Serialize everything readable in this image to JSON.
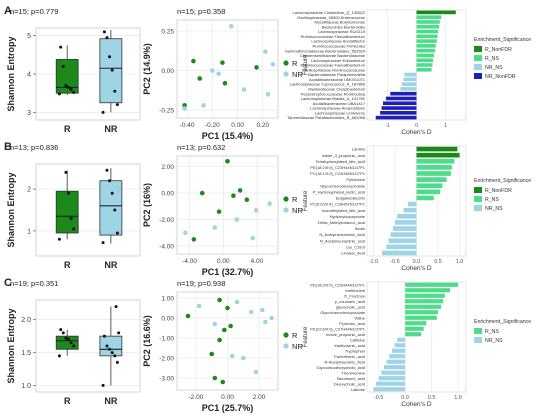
{
  "chart_data": [
    {
      "panel": "A",
      "kind": "box",
      "type": "box",
      "title": "n=15; p=0.779",
      "ylabel": "Shannon Entropy",
      "categories": [
        "R",
        "NR"
      ],
      "colors": [
        "#1b8a1b",
        "#9fd3e6"
      ],
      "ylim": [
        2.8,
        5.2
      ],
      "yticks": [
        3,
        4,
        5
      ],
      "boxes": [
        {
          "min": 3.45,
          "q1": 3.5,
          "median": 3.65,
          "q3": 4.38,
          "max": 4.75
        },
        {
          "min": 3.0,
          "q1": 3.25,
          "median": 4.15,
          "q3": 4.92,
          "max": 5.15
        }
      ],
      "points": [
        [
          3.48,
          3.52,
          3.6,
          3.65,
          3.7,
          4.2,
          4.7
        ],
        [
          3.0,
          3.2,
          3.55,
          4.1,
          4.45,
          4.95,
          5.1
        ]
      ]
    },
    {
      "panel": "A",
      "kind": "pca",
      "type": "scatter",
      "title": "n=15; p=0.358",
      "xlabel": "PC1 (15.4%)",
      "ylabel": "PC2 (14.9%)",
      "xlim": [
        -0.48,
        0.32
      ],
      "ylim": [
        -0.3,
        0.32
      ],
      "xticks": [
        -0.4,
        -0.2,
        0.0,
        0.2
      ],
      "xtick_labels": [
        "-0.40",
        "-0.20",
        "0.00",
        "0.20"
      ],
      "yticks": [
        -0.25,
        0.0,
        0.25
      ],
      "ytick_labels": [
        "-0.25",
        "0.00",
        "0.25"
      ],
      "series": [
        {
          "name": "R",
          "color": "#1b8a1b",
          "x": [
            -0.42,
            -0.35,
            -0.12,
            -0.3,
            -0.1,
            0.15
          ],
          "y": [
            -0.22,
            0.06,
            0.05,
            -0.05,
            -0.08,
            0.02
          ]
        },
        {
          "name": "NR",
          "color": "#9fd3e6",
          "x": [
            -0.42,
            -0.27,
            -0.2,
            0.05,
            0.22,
            0.24,
            -0.05,
            -0.15,
            0.28
          ],
          "y": [
            -0.24,
            -0.22,
            0.0,
            -0.12,
            0.12,
            -0.15,
            0.28,
            -0.02,
            0.04
          ]
        }
      ]
    },
    {
      "panel": "A",
      "kind": "enrichment",
      "type": "bar",
      "xlabel": "Cohen's D",
      "ylabel": "Feature",
      "xlim": [
        -1.7,
        1.7
      ],
      "xticks": [
        -1,
        0,
        1
      ],
      "legend_title": "Enrichment_Significance",
      "legend": [
        {
          "name": "R_NonFDR",
          "color": "#1b8a1b"
        },
        {
          "name": "R_NS",
          "color": "#4ddc8a"
        },
        {
          "name": "NR_NS",
          "color": "#9fd3e6"
        },
        {
          "name": "NR_NonFDR",
          "color": "#1f1fb8"
        }
      ],
      "categories": [
        "Lachnospiraceae Clostridium_Q_135822",
        "Oscillospiraceae_38309 Enterococcus",
        "Mycofillaceae Butyricimonas",
        "Bacteroides Bacteroides",
        "Lachnospiraceae RUG115",
        "Ruminococcaceae Faecalibacterium",
        "Lachnospiraceae Acetatifactor",
        "Ruminococcaceae Firmicutes",
        "Gemmatimonadaceae Bacteroidales_562524",
        "Christensenellaceae Bacteroidaceae",
        "Lachnospiraceae Eubacterium",
        "Ruminococcaceae Faecalibacterium",
        "Oscillospiraceae Ruminococcaceae",
        "Bacteroidaceae Parapreevotella",
        "Acutalibacteraceae UMGS1071",
        "Lachnospiraceae Coprococcus_A_187866",
        "Weeksellaceae Cloacibacterium",
        "Peptostreptococcaceae Romboutsia",
        "Lachnospiraceae Blautia_A_141780",
        "Acutalibacteraceae UBA1417",
        "Lachnospiraceae Anaerostipes",
        "Lachnospiraceae Limivivens",
        "Tannerellaceae Parabacteroides_B_862066"
      ],
      "values": [
        1.35,
        0.85,
        0.8,
        0.78,
        0.75,
        0.72,
        0.7,
        0.66,
        0.64,
        0.6,
        0.57,
        0.55,
        0.52,
        -0.42,
        -0.45,
        -0.5,
        -0.55,
        -0.9,
        -1.05,
        -1.15,
        -1.2,
        -1.25,
        -1.4
      ],
      "groups": [
        "R_NonFDR",
        "R_NS",
        "R_NS",
        "R_NS",
        "R_NS",
        "R_NS",
        "R_NS",
        "R_NS",
        "R_NS",
        "R_NS",
        "R_NS",
        "R_NS",
        "R_NS",
        "NR_NS",
        "NR_NS",
        "NR_NS",
        "NR_NS",
        "NR_NonFDR",
        "NR_NonFDR",
        "NR_NonFDR",
        "NR_NonFDR",
        "NR_NonFDR",
        "NR_NonFDR"
      ]
    },
    {
      "panel": "B",
      "kind": "box",
      "type": "box",
      "title": "n=13; p=0.836",
      "ylabel": "Shannon Entropy",
      "categories": [
        "R",
        "NR"
      ],
      "colors": [
        "#1b8a1b",
        "#9fd3e6"
      ],
      "ylim": [
        0.4,
        2.6
      ],
      "yticks": [
        1,
        2
      ],
      "boxes": [
        {
          "min": 0.8,
          "q1": 0.95,
          "median": 1.35,
          "q3": 1.95,
          "max": 2.45
        },
        {
          "min": 0.7,
          "q1": 0.9,
          "median": 1.6,
          "q3": 2.2,
          "max": 2.5
        }
      ],
      "points": [
        [
          0.8,
          1.05,
          1.3,
          1.9,
          2.4
        ],
        [
          0.72,
          0.95,
          1.5,
          1.9,
          2.2,
          2.45
        ]
      ]
    },
    {
      "panel": "B",
      "kind": "pca",
      "type": "scatter",
      "title": "n=13; p=0.632",
      "xlabel": "PC1 (32.7%)",
      "ylabel": "PC2 (16%)",
      "xlim": [
        -5.5,
        6.5
      ],
      "ylim": [
        -4.6,
        2.8
      ],
      "xticks": [
        -4,
        0,
        4
      ],
      "xtick_labels": [
        "-4.00",
        "0.00",
        "4.00"
      ],
      "yticks": [
        -4,
        -2,
        0,
        2
      ],
      "ytick_labels": [
        "-4.00",
        "-2.00",
        "0.00",
        "2.00"
      ],
      "series": [
        {
          "name": "R",
          "color": "#1b8a1b",
          "x": [
            -3.5,
            -2.5,
            0.5,
            -0.5,
            1.2,
            2.0,
            2.8
          ],
          "y": [
            -3.5,
            0.0,
            2.4,
            -1.4,
            -0.2,
            0.2,
            -0.5
          ]
        },
        {
          "name": "NR",
          "color": "#9fd3e6",
          "x": [
            -4.5,
            1.6,
            3.5,
            5.5,
            3.9,
            -1.0
          ],
          "y": [
            -3.0,
            -2.0,
            -3.4,
            -0.8,
            -1.3,
            -2.6
          ]
        }
      ]
    },
    {
      "panel": "B",
      "kind": "enrichment",
      "type": "bar",
      "xlabel": "Cohen's D",
      "ylabel": "Feature",
      "xlim": [
        -1.15,
        1.15
      ],
      "xticks": [
        -1.0,
        -0.5,
        0.0,
        0.5,
        1.0
      ],
      "xtick_labels": [
        "-1.0",
        "-0.5",
        "0.0",
        "0.5",
        "1.0"
      ],
      "legend_title": "Enrichment_Significance",
      "legend": [
        {
          "name": "R_NonFDR",
          "color": "#1b8a1b"
        },
        {
          "name": "R_NS",
          "color": "#4ddc8a"
        },
        {
          "name": "NR_NS",
          "color": "#9fd3e6"
        }
      ],
      "categories": [
        "Lambin",
        "indole_3_propionic_acid",
        "Tetrahydroxylated_bile_acid",
        "PE(18:2/0:0)_C23H44N1O7P1",
        "PC(16:1/0:0)_C24H48N1O7P1",
        "Pyridoxine",
        "Glycochenodeoxycholate",
        "P_Hydroxyphenyl_lactic_acid",
        "Epigallocatechin",
        "PC(0:0/20:4)_C28H51N1O7P1",
        "Isomethylated_bile_acid",
        "Hydroxyisocaproate",
        "Delta_Methyltobacco_acid",
        "Biotin",
        "N_Acetylneuraminic_Acid",
        "N_Acetylneuraminic_acid",
        "Lys_C18:0",
        "Linoleic_Acid"
      ],
      "values": [
        0.95,
        1.0,
        0.88,
        0.82,
        0.8,
        0.7,
        0.6,
        0.55,
        0.4,
        -0.2,
        -0.3,
        -0.45,
        -0.5,
        -0.55,
        -0.6,
        -0.65,
        -0.7,
        -0.8
      ],
      "groups": [
        "R_NonFDR",
        "R_NonFDR",
        "R_NS",
        "R_NS",
        "R_NS",
        "R_NS",
        "R_NS",
        "R_NS",
        "R_NS",
        "NR_NS",
        "NR_NS",
        "NR_NS",
        "NR_NS",
        "NR_NS",
        "NR_NS",
        "NR_NS",
        "NR_NS",
        "NR_NS"
      ]
    },
    {
      "panel": "C",
      "kind": "box",
      "type": "box",
      "title": "n=19; p=0.351",
      "ylabel": "Shannon Entropy",
      "categories": [
        "R",
        "NR"
      ],
      "colors": [
        "#1b8a1b",
        "#9fd3e6"
      ],
      "ylim": [
        0.9,
        2.3
      ],
      "yticks": [
        1.0,
        1.5,
        2.0
      ],
      "ytick_labels": [
        "1.0",
        "1.5",
        "2.0"
      ],
      "boxes": [
        {
          "min": 1.45,
          "q1": 1.55,
          "median": 1.68,
          "q3": 1.75,
          "max": 1.85
        },
        {
          "min": 1.0,
          "q1": 1.45,
          "median": 1.55,
          "q3": 1.75,
          "max": 2.2
        }
      ],
      "points": [
        [
          1.45,
          1.6,
          1.65,
          1.7,
          1.72,
          1.8,
          1.85
        ],
        [
          1.0,
          1.35,
          1.45,
          1.5,
          1.55,
          1.6,
          1.75,
          1.8,
          2.2
        ]
      ]
    },
    {
      "panel": "C",
      "kind": "pca",
      "type": "scatter",
      "title": "n=19; p=0.938",
      "xlabel": "PC1 (25.7%)",
      "ylabel": "PC2 (16.6%)",
      "xlim": [
        -3.2,
        3.2
      ],
      "ylim": [
        -3.6,
        1.3
      ],
      "xticks": [
        -2,
        0,
        2
      ],
      "xtick_labels": [
        "-2.00",
        "0.00",
        "2.00"
      ],
      "yticks": [
        -3,
        -2,
        -1,
        0,
        1
      ],
      "ytick_labels": [
        "-3.00",
        "-2.00",
        "-1.00",
        "0.00",
        "1.00"
      ],
      "series": [
        {
          "name": "R",
          "color": "#1b8a1b",
          "x": [
            -2.5,
            -0.5,
            0.0,
            -0.2,
            0.2,
            -0.5,
            -1.0,
            -0.8,
            -0.3
          ],
          "y": [
            0.1,
            0.9,
            0.5,
            -0.6,
            -0.4,
            -1.1,
            -1.8,
            -3.0,
            -3.2
          ]
        },
        {
          "name": "NR",
          "color": "#9fd3e6",
          "x": [
            -1.8,
            -0.8,
            0.6,
            1.5,
            2.2,
            2.4,
            2.8,
            0.3,
            1.0,
            1.8
          ],
          "y": [
            0.6,
            -0.3,
            0.8,
            0.3,
            0.4,
            -0.2,
            0.0,
            -1.9,
            -2.0,
            -2.7
          ]
        }
      ]
    },
    {
      "panel": "C",
      "kind": "enrichment",
      "type": "bar",
      "xlabel": "Cohen's D",
      "ylabel": "Feature",
      "xlim": [
        -0.72,
        1.15
      ],
      "xticks": [
        -0.5,
        0.0,
        0.5,
        1.0
      ],
      "xtick_labels": [
        "-0.5",
        "0.0",
        "0.5",
        "1.0"
      ],
      "legend_title": "Enrichment_Significance",
      "legend": [
        {
          "name": "R_NS",
          "color": "#4ddc8a"
        },
        {
          "name": "NR_NS",
          "color": "#9fd3e6"
        }
      ],
      "categories": [
        "PE(18:2/0:0)_C23H44N1O7P1",
        "methionine",
        "D_Fructose",
        "p_coumaric_acid",
        "glycocholic_acid",
        "Glycochenodeoxycholate",
        "Valine",
        "Pyridoxic_acid",
        "PE(22:6/0:0)_C27H44N1O7P1",
        "indole_propionic_acid",
        "Caffeine",
        "Xanthurenic_acid",
        "Tryptophan",
        "Pantothenic_acid",
        "N-Acetylmuramic_Acid",
        "Glycoursodeoxycholic_acid",
        "Theobromine",
        "Nicotinuric_acid",
        "Deoxycholic_acid",
        "Lactose"
      ],
      "values": [
        1.0,
        0.85,
        0.75,
        0.72,
        0.68,
        0.62,
        0.6,
        0.4,
        0.35,
        0.3,
        -0.15,
        -0.2,
        -0.25,
        -0.3,
        -0.35,
        -0.4,
        -0.45,
        -0.5,
        -0.55,
        -0.6
      ],
      "groups": [
        "R_NS",
        "R_NS",
        "R_NS",
        "R_NS",
        "R_NS",
        "R_NS",
        "R_NS",
        "R_NS",
        "R_NS",
        "R_NS",
        "NR_NS",
        "NR_NS",
        "NR_NS",
        "NR_NS",
        "NR_NS",
        "NR_NS",
        "NR_NS",
        "NR_NS",
        "NR_NS",
        "NR_NS"
      ]
    }
  ],
  "panel_labels": [
    "A",
    "B",
    "C"
  ]
}
